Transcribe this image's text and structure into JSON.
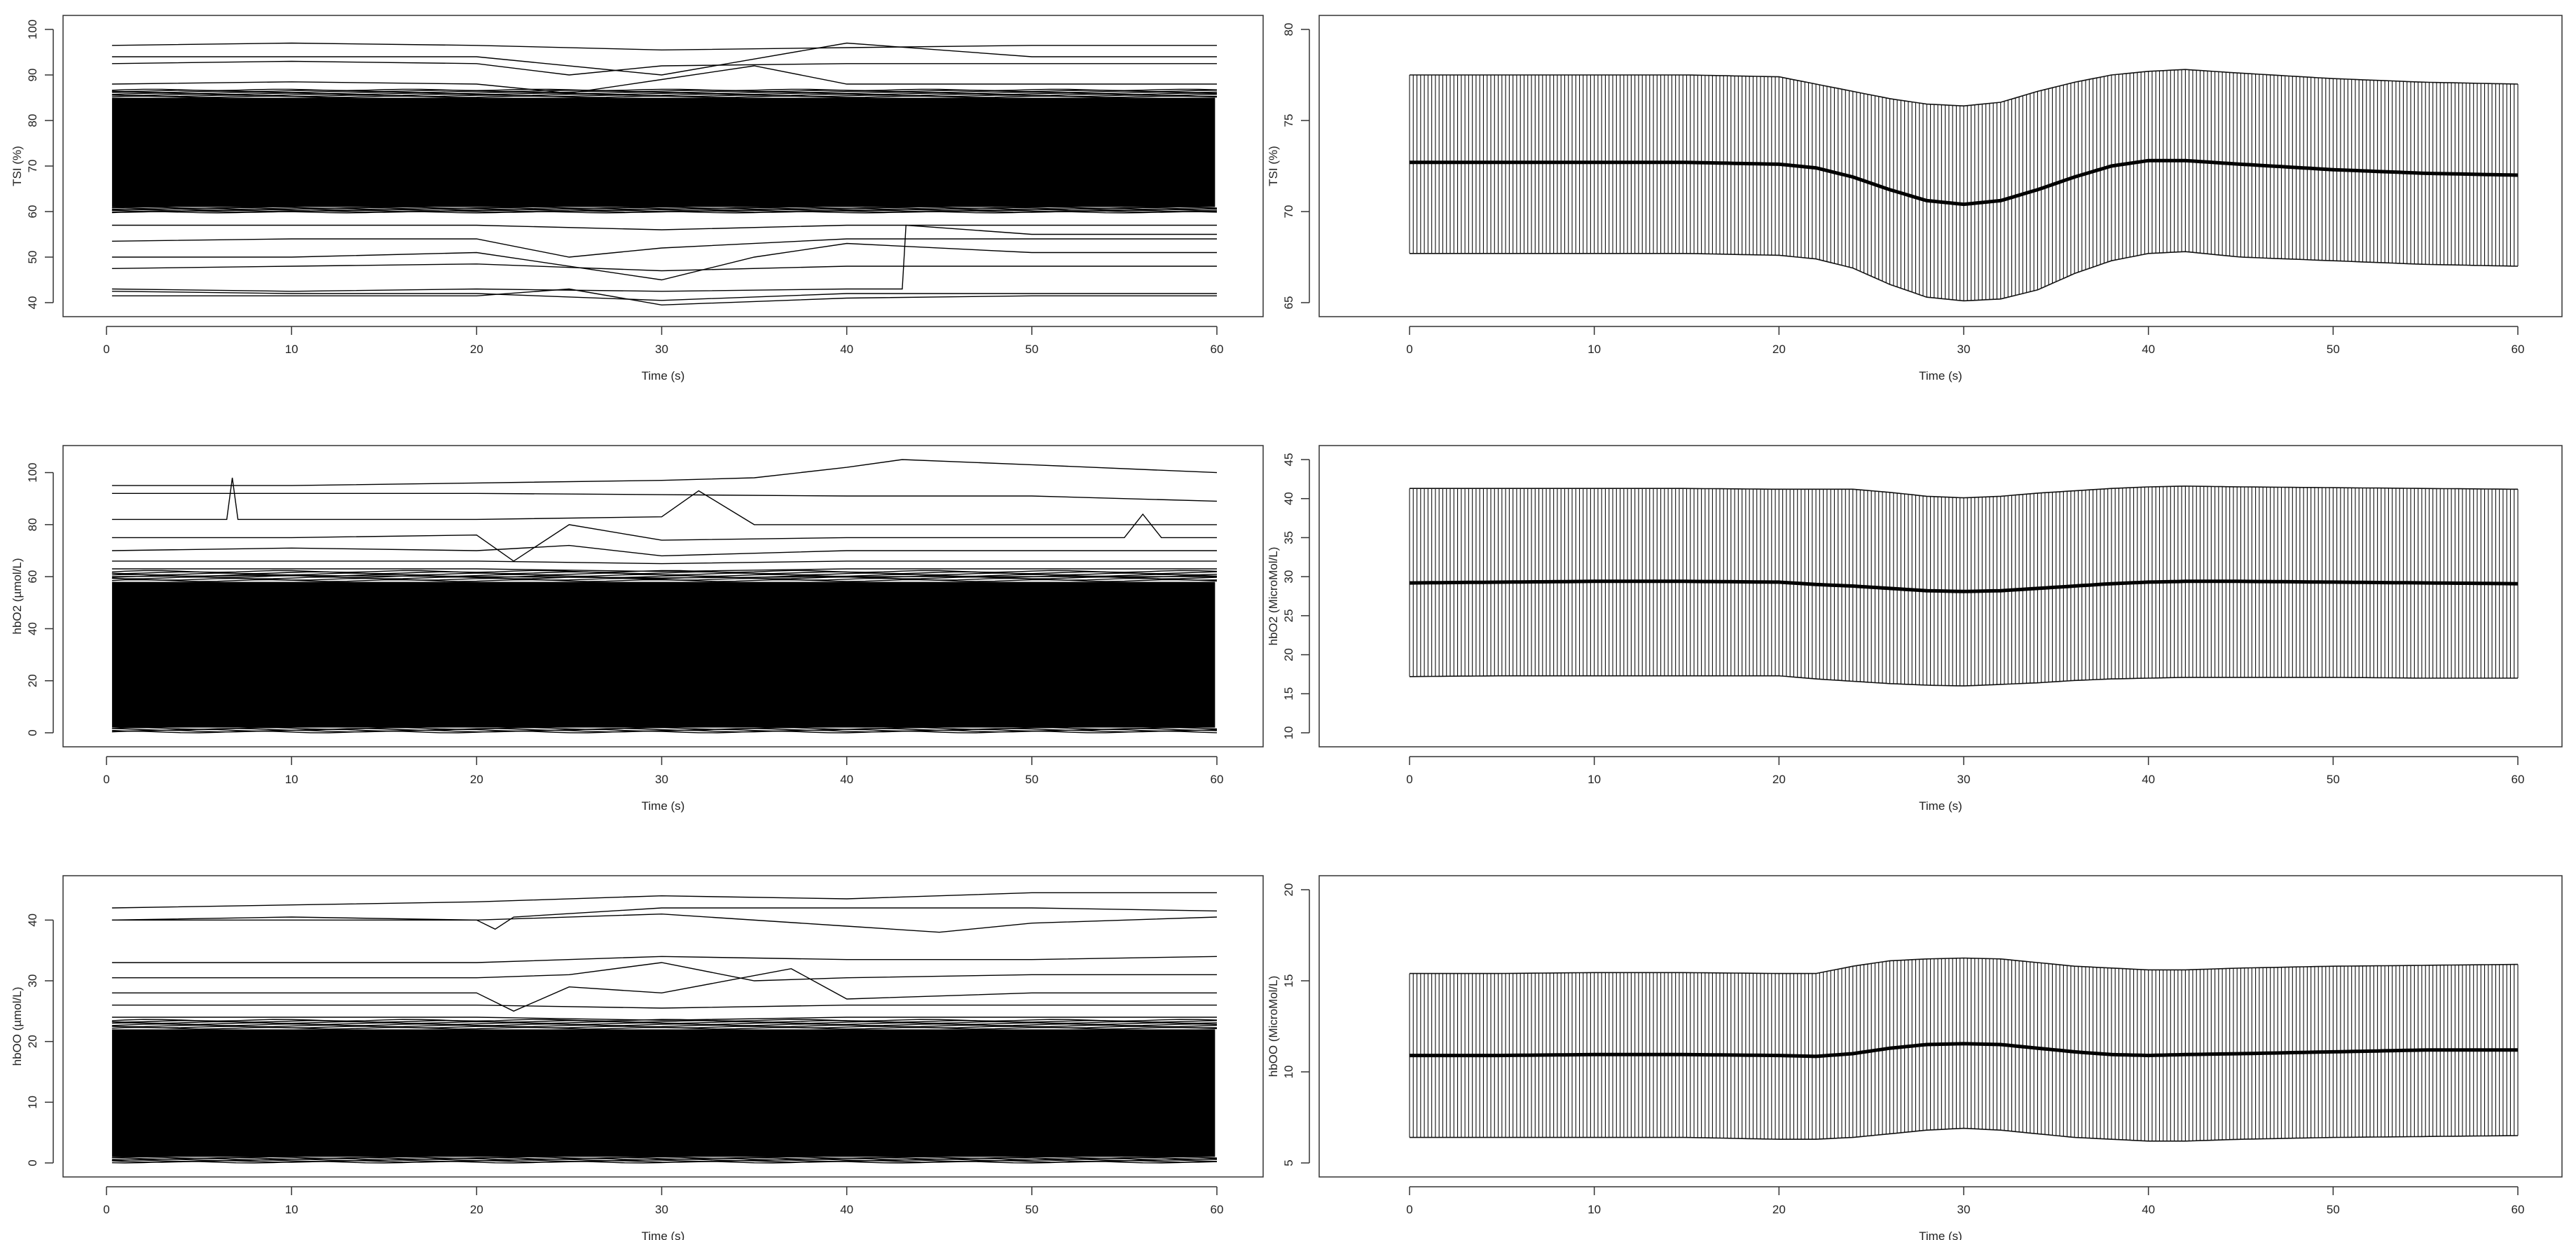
{
  "chart_data": [
    {
      "type": "line",
      "panel": "raw-traces",
      "xlabel": "Time (s)",
      "ylabel": "TSI (%)",
      "xlim": [
        0,
        60
      ],
      "ylim": [
        40,
        100
      ],
      "xticks": [
        0,
        10,
        20,
        30,
        40,
        50,
        60
      ],
      "yticks": [
        40,
        50,
        60,
        70,
        80,
        90,
        100
      ],
      "dense_band": [
        61,
        85
      ],
      "traces": [
        {
          "x": [
            0,
            10,
            20,
            30,
            40,
            50,
            60
          ],
          "y": [
            96.5,
            97,
            96.5,
            95.5,
            96,
            96.5,
            96.5
          ]
        },
        {
          "x": [
            0,
            10,
            20,
            30,
            40,
            50,
            60
          ],
          "y": [
            94,
            94,
            94,
            90,
            97,
            94,
            94
          ]
        },
        {
          "x": [
            0,
            10,
            20,
            25,
            30,
            40,
            50,
            60
          ],
          "y": [
            92.5,
            93,
            92.5,
            90,
            92,
            92.5,
            92.5,
            92.5
          ]
        },
        {
          "x": [
            0,
            10,
            20,
            25,
            30,
            35,
            40,
            50,
            60
          ],
          "y": [
            88,
            88.5,
            88,
            86,
            89,
            92,
            88,
            88,
            88
          ]
        },
        {
          "x": [
            0,
            10,
            20,
            30,
            40,
            50,
            60
          ],
          "y": [
            57,
            57,
            57,
            56,
            57,
            57,
            57
          ]
        },
        {
          "x": [
            0,
            10,
            20,
            25,
            30,
            40,
            50,
            60
          ],
          "y": [
            53.5,
            54,
            54,
            50,
            52,
            54,
            54,
            54
          ]
        },
        {
          "x": [
            0,
            10,
            20,
            30,
            35,
            40,
            50,
            60
          ],
          "y": [
            50,
            50,
            51,
            45,
            50,
            53,
            51,
            51
          ]
        },
        {
          "x": [
            0,
            10,
            20,
            30,
            40,
            50,
            60
          ],
          "y": [
            47.5,
            48,
            48.5,
            47,
            48,
            48,
            48
          ]
        },
        {
          "x": [
            0,
            10,
            20,
            30,
            40,
            43,
            43.2,
            50,
            60
          ],
          "y": [
            43,
            42.5,
            43,
            42.5,
            43,
            43,
            57,
            55,
            55
          ]
        },
        {
          "x": [
            0,
            10,
            20,
            30,
            40,
            50,
            60
          ],
          "y": [
            42.5,
            42,
            42,
            40.5,
            42,
            42,
            42
          ]
        },
        {
          "x": [
            0,
            10,
            20,
            25,
            30,
            40,
            50,
            60
          ],
          "y": [
            41.5,
            41.5,
            41.5,
            43,
            39.5,
            41,
            41.5,
            41.5
          ]
        }
      ]
    },
    {
      "type": "line",
      "panel": "mean-with-sd",
      "xlabel": "Time (s)",
      "ylabel": "TSI (%)",
      "xlim": [
        0,
        60
      ],
      "ylim": [
        65,
        80
      ],
      "xticks": [
        0,
        10,
        20,
        30,
        40,
        50,
        60
      ],
      "yticks": [
        65,
        70,
        75,
        80
      ],
      "x": [
        0,
        5,
        10,
        15,
        20,
        22,
        24,
        26,
        28,
        30,
        32,
        34,
        36,
        38,
        40,
        42,
        45,
        50,
        55,
        60
      ],
      "mean": [
        72.7,
        72.7,
        72.7,
        72.7,
        72.6,
        72.4,
        71.9,
        71.2,
        70.6,
        70.4,
        70.6,
        71.2,
        71.9,
        72.5,
        72.8,
        72.8,
        72.6,
        72.3,
        72.1,
        72.0
      ],
      "upper": [
        77.5,
        77.5,
        77.5,
        77.5,
        77.4,
        77.0,
        76.6,
        76.2,
        75.9,
        75.8,
        76.0,
        76.6,
        77.1,
        77.5,
        77.7,
        77.8,
        77.6,
        77.3,
        77.1,
        77.0
      ],
      "lower": [
        67.7,
        67.7,
        67.7,
        67.7,
        67.6,
        67.4,
        66.9,
        66.0,
        65.3,
        65.1,
        65.2,
        65.7,
        66.6,
        67.3,
        67.7,
        67.8,
        67.5,
        67.3,
        67.1,
        67.0
      ]
    },
    {
      "type": "line",
      "panel": "raw-traces",
      "xlabel": "Time (s)",
      "ylabel": "hbO2 (µmol/L)",
      "xlim": [
        0,
        60
      ],
      "ylim": [
        0,
        105
      ],
      "xticks": [
        0,
        10,
        20,
        30,
        40,
        50,
        60
      ],
      "yticks": [
        0,
        20,
        40,
        60,
        80,
        100
      ],
      "dense_band": [
        2,
        58
      ],
      "traces": [
        {
          "x": [
            0,
            10,
            20,
            30,
            35,
            40,
            43,
            50,
            60
          ],
          "y": [
            95,
            95,
            96,
            97,
            98,
            102,
            105,
            103,
            100
          ]
        },
        {
          "x": [
            0,
            10,
            20,
            30,
            40,
            50,
            60
          ],
          "y": [
            92,
            92,
            92,
            91.5,
            91,
            91,
            89
          ]
        },
        {
          "x": [
            0,
            6.5,
            6.8,
            7.1,
            10,
            20,
            30,
            32,
            35,
            40,
            50,
            60
          ],
          "y": [
            82,
            82,
            98,
            82,
            82,
            82,
            83,
            93,
            80,
            80,
            80,
            80
          ]
        },
        {
          "x": [
            0,
            10,
            20,
            22,
            25,
            30,
            40,
            50,
            55,
            56,
            57,
            60
          ],
          "y": [
            75,
            75,
            76,
            66,
            80,
            74,
            75,
            75,
            75,
            84,
            75,
            75
          ]
        },
        {
          "x": [
            0,
            10,
            20,
            25,
            30,
            40,
            50,
            60
          ],
          "y": [
            70,
            71,
            70,
            72,
            68,
            70,
            70,
            70
          ]
        },
        {
          "x": [
            0,
            10,
            20,
            30,
            40,
            50,
            60
          ],
          "y": [
            66,
            66,
            66,
            65,
            66,
            66,
            66
          ]
        },
        {
          "x": [
            0,
            10,
            20,
            30,
            40,
            50,
            60
          ],
          "y": [
            63,
            63,
            63,
            62,
            63,
            63,
            63
          ]
        },
        {
          "x": [
            0,
            10,
            20,
            30,
            40,
            50,
            60
          ],
          "y": [
            60,
            60.5,
            60,
            59.5,
            60,
            60,
            60
          ]
        }
      ]
    },
    {
      "type": "line",
      "panel": "mean-with-sd",
      "xlabel": "Time (s)",
      "ylabel": "hbO2 (MicroMol/L)",
      "xlim": [
        0,
        60
      ],
      "ylim": [
        10,
        45
      ],
      "xticks": [
        0,
        10,
        20,
        30,
        40,
        50,
        60
      ],
      "yticks": [
        10,
        15,
        20,
        25,
        30,
        35,
        40,
        45
      ],
      "x": [
        0,
        5,
        10,
        15,
        20,
        22,
        24,
        26,
        28,
        30,
        32,
        34,
        36,
        38,
        40,
        42,
        45,
        50,
        55,
        60
      ],
      "mean": [
        29.2,
        29.3,
        29.4,
        29.4,
        29.3,
        29.0,
        28.8,
        28.5,
        28.2,
        28.1,
        28.2,
        28.5,
        28.8,
        29.1,
        29.3,
        29.4,
        29.4,
        29.3,
        29.2,
        29.1
      ],
      "upper": [
        41.3,
        41.3,
        41.3,
        41.3,
        41.2,
        41.2,
        41.2,
        40.8,
        40.3,
        40.1,
        40.3,
        40.7,
        41.0,
        41.3,
        41.5,
        41.6,
        41.5,
        41.4,
        41.3,
        41.2
      ],
      "lower": [
        17.2,
        17.3,
        17.3,
        17.3,
        17.3,
        16.9,
        16.6,
        16.3,
        16.1,
        16.0,
        16.2,
        16.4,
        16.7,
        16.9,
        17.0,
        17.1,
        17.1,
        17.1,
        17.0,
        17.0
      ]
    },
    {
      "type": "line",
      "panel": "raw-traces",
      "xlabel": "Time (s)",
      "ylabel": "hbOO (µmol/L)",
      "xlim": [
        0,
        60
      ],
      "ylim": [
        0,
        45
      ],
      "xticks": [
        0,
        10,
        20,
        30,
        40,
        50,
        60
      ],
      "yticks": [
        0,
        10,
        20,
        30,
        40
      ],
      "dense_band": [
        1,
        22
      ],
      "traces": [
        {
          "x": [
            0,
            10,
            20,
            30,
            40,
            50,
            60
          ],
          "y": [
            42,
            42.5,
            43,
            44,
            43.5,
            44.5,
            44.5
          ]
        },
        {
          "x": [
            0,
            10,
            20,
            21,
            22,
            30,
            40,
            50,
            60
          ],
          "y": [
            40,
            40.5,
            40,
            38.5,
            40.5,
            42,
            42,
            42,
            41.5
          ]
        },
        {
          "x": [
            0,
            10,
            20,
            30,
            40,
            45,
            50,
            60
          ],
          "y": [
            40,
            40,
            40,
            41,
            39,
            38,
            39.5,
            40.5
          ]
        },
        {
          "x": [
            0,
            10,
            20,
            30,
            40,
            50,
            60
          ],
          "y": [
            33,
            33,
            33,
            34,
            33.5,
            33.5,
            34
          ]
        },
        {
          "x": [
            0,
            10,
            20,
            25,
            30,
            35,
            40,
            50,
            60
          ],
          "y": [
            30.5,
            30.5,
            30.5,
            31,
            33,
            30,
            30.5,
            31,
            31
          ]
        },
        {
          "x": [
            0,
            10,
            20,
            22,
            25,
            30,
            37,
            40,
            50,
            60
          ],
          "y": [
            28,
            28,
            28,
            25,
            29,
            28,
            32,
            27,
            28,
            28
          ]
        },
        {
          "x": [
            0,
            10,
            20,
            30,
            40,
            50,
            60
          ],
          "y": [
            26,
            26,
            26,
            25.5,
            26,
            26,
            26
          ]
        },
        {
          "x": [
            0,
            10,
            20,
            30,
            40,
            50,
            60
          ],
          "y": [
            24,
            24,
            24,
            23.5,
            24,
            24,
            24
          ]
        }
      ]
    },
    {
      "type": "line",
      "panel": "mean-with-sd",
      "xlabel": "Time (s)",
      "ylabel": "hbOO (MicroMol/L)",
      "xlim": [
        0,
        60
      ],
      "ylim": [
        5,
        20
      ],
      "xticks": [
        0,
        10,
        20,
        30,
        40,
        50,
        60
      ],
      "yticks": [
        5,
        10,
        15,
        20
      ],
      "x": [
        0,
        5,
        10,
        15,
        20,
        22,
        24,
        26,
        28,
        30,
        32,
        34,
        36,
        38,
        40,
        42,
        45,
        50,
        55,
        60
      ],
      "mean": [
        10.9,
        10.9,
        10.95,
        10.95,
        10.9,
        10.85,
        11.0,
        11.3,
        11.5,
        11.55,
        11.5,
        11.3,
        11.1,
        10.95,
        10.9,
        10.95,
        11.0,
        11.1,
        11.2,
        11.2
      ],
      "upper": [
        15.4,
        15.4,
        15.45,
        15.45,
        15.4,
        15.4,
        15.8,
        16.1,
        16.2,
        16.25,
        16.2,
        16.0,
        15.8,
        15.7,
        15.6,
        15.6,
        15.7,
        15.8,
        15.85,
        15.9
      ],
      "lower": [
        6.4,
        6.4,
        6.4,
        6.4,
        6.3,
        6.3,
        6.4,
        6.6,
        6.8,
        6.9,
        6.8,
        6.6,
        6.4,
        6.3,
        6.2,
        6.2,
        6.3,
        6.4,
        6.45,
        6.5
      ]
    }
  ]
}
